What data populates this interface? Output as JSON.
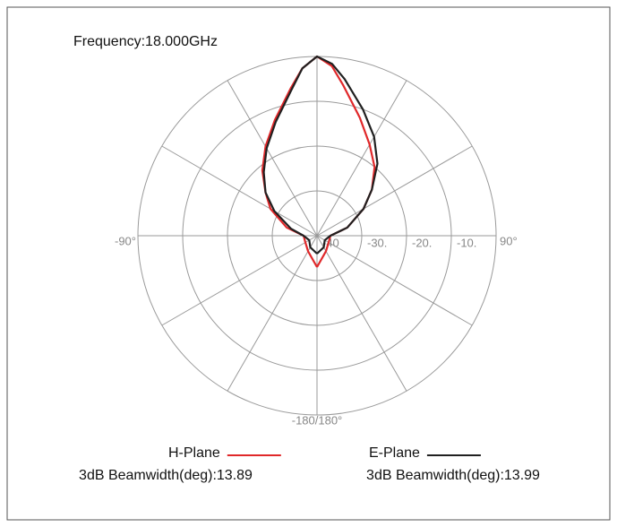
{
  "chart_data": {
    "type": "polar",
    "title": "Frequency:18.000GHz",
    "rlim": [
      -40,
      0
    ],
    "rticks": [
      "-40",
      {
        "value": -30,
        "label": "-30."
      },
      {
        "value": -20,
        "label": "-20."
      },
      {
        "value": -10,
        "label": "-10."
      }
    ],
    "rings": [
      -30,
      -20,
      -10,
      0
    ],
    "thetaticks": [
      0,
      30,
      60,
      90,
      120,
      150,
      180,
      210,
      240,
      270,
      300,
      330
    ],
    "angle_labels": [
      {
        "value": -90,
        "label": "-90°"
      },
      {
        "value": 90,
        "label": "90°"
      },
      {
        "value": 180,
        "label": "-180/180°"
      }
    ],
    "x": [
      -180,
      -150,
      -120,
      -90,
      -75,
      -60,
      -50,
      -40,
      -30,
      -20,
      -10,
      -5,
      0,
      5,
      10,
      20,
      30,
      40,
      50,
      60,
      75,
      90,
      120,
      150,
      180
    ],
    "series": [
      {
        "name": "H-Plane",
        "color": "#e0282a",
        "annotation": "3dB Beamwidth(deg):13.89",
        "values": [
          -33,
          -36,
          -37,
          -37,
          -33,
          -28,
          -25,
          -21,
          -17,
          -12.5,
          -6.5,
          -2.5,
          0,
          -2,
          -6,
          -12,
          -16.5,
          -20,
          -24,
          -28,
          -33,
          -37,
          -37,
          -36,
          -33
        ]
      },
      {
        "name": "E-Plane",
        "color": "#202020",
        "annotation": "3dB Beamwidth(deg):13.99",
        "values": [
          -36,
          -37,
          -38,
          -37,
          -34,
          -29,
          -25,
          -21.5,
          -17.5,
          -13,
          -7,
          -2.5,
          0,
          -1.5,
          -4.5,
          -10,
          -14.5,
          -19,
          -24,
          -28,
          -33,
          -37,
          -38,
          -37,
          -36
        ]
      }
    ]
  }
}
